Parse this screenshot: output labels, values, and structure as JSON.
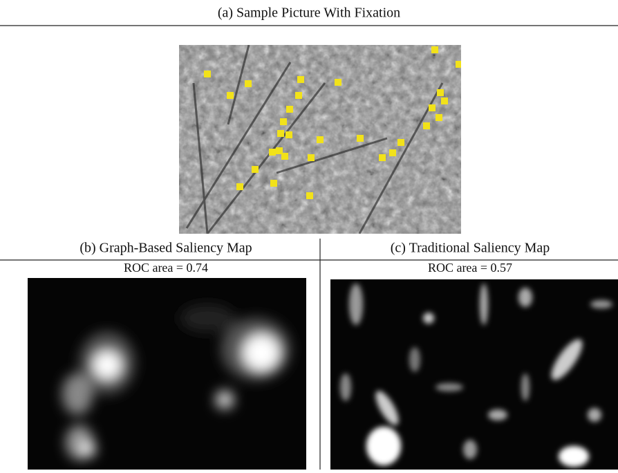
{
  "figure": {
    "panel_a": {
      "caption": "(a) Sample Picture With Fixation"
    },
    "panel_b": {
      "caption": "(b) Graph-Based Saliency Map",
      "metric": "ROC area = 0.74"
    },
    "panel_c": {
      "caption": "(c) Traditional Saliency Map",
      "metric": "ROC area = 0.57"
    }
  }
}
